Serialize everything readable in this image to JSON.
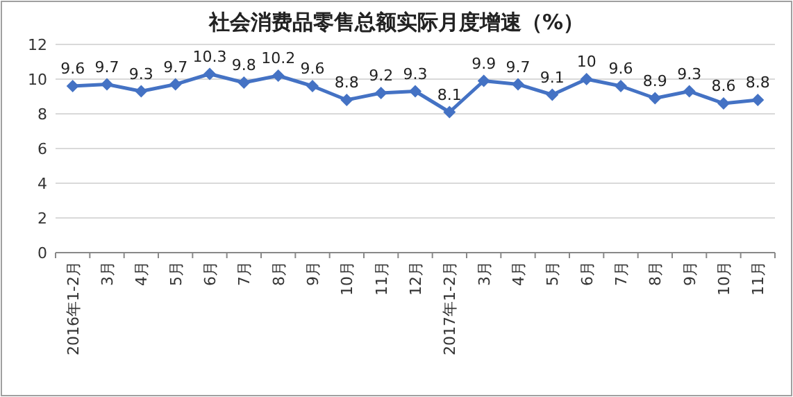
{
  "chart_data": {
    "type": "line",
    "title": "社会消费品零售总额实际月度增速（%）",
    "categories": [
      "2016年1-2月",
      "3月",
      "4月",
      "5月",
      "6月",
      "7月",
      "8月",
      "9月",
      "10月",
      "11月",
      "12月",
      "2017年1-2月",
      "3月",
      "4月",
      "5月",
      "6月",
      "7月",
      "8月",
      "9月",
      "10月",
      "11月"
    ],
    "series": [
      {
        "color": "#4472c4",
        "values": [
          9.6,
          9.7,
          9.3,
          9.7,
          10.3,
          9.8,
          10.2,
          9.6,
          8.8,
          9.2,
          9.3,
          8.1,
          9.9,
          9.7,
          9.1,
          10,
          9.6,
          8.9,
          9.3,
          8.6,
          8.8
        ]
      }
    ],
    "ylim": [
      0,
      12
    ],
    "yticks": [
      0,
      2,
      4,
      6,
      8,
      10,
      12
    ],
    "grid": "y",
    "marker": "diamond",
    "line_style": "solid",
    "data_labels": true
  }
}
